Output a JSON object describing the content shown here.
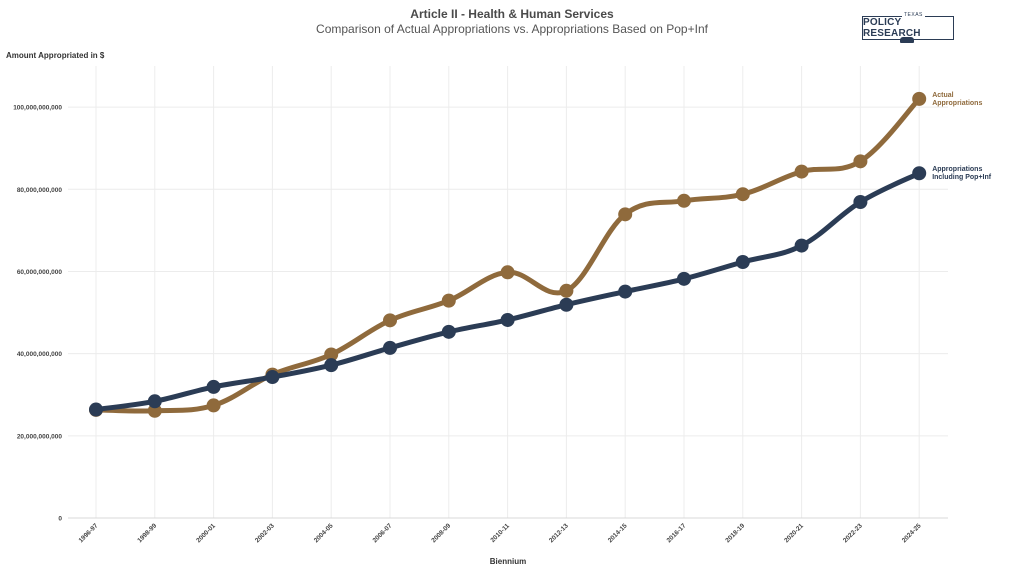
{
  "chart_data": {
    "type": "line",
    "title": "Article II - Health & Human Services",
    "subtitle": "Comparison of Actual Appropriations vs. Appropriations Based on Pop+Inf",
    "ylabel": "Amount Appropriated in $",
    "xlabel": "Biennium",
    "ylim": [
      0,
      110000000000
    ],
    "yticks": [
      0,
      20000000000,
      40000000000,
      60000000000,
      80000000000,
      100000000000
    ],
    "ytick_labels": [
      "0",
      "20,000,000,000",
      "40,000,000,000",
      "60,000,000,000",
      "80,000,000,000",
      "100,000,000,000"
    ],
    "grid": true,
    "categories": [
      "1996-97",
      "1998-99",
      "2000-01",
      "2002-03",
      "2004-05",
      "2006-07",
      "2008-09",
      "2010-11",
      "2012-13",
      "2014-15",
      "2016-17",
      "2018-19",
      "2020-21",
      "2022-23",
      "2024-25"
    ],
    "series": [
      {
        "name": "Actual Appropriations",
        "label_lines": [
          "Actual",
          "Appropriations"
        ],
        "color": "#8f6a3c",
        "values": [
          26300000000,
          26100000000,
          27400000000,
          34900000000,
          39800000000,
          48100000000,
          52900000000,
          59800000000,
          55300000000,
          73900000000,
          77200000000,
          78800000000,
          84300000000,
          86800000000,
          102000000000
        ]
      },
      {
        "name": "Appropriations Including Pop+Inf",
        "label_lines": [
          "Appropriations",
          "Including Pop+Inf"
        ],
        "color": "#2b3c55",
        "values": [
          26400000000,
          28400000000,
          31900000000,
          34300000000,
          37200000000,
          41400000000,
          45300000000,
          48200000000,
          51900000000,
          55100000000,
          58200000000,
          62300000000,
          66300000000,
          76900000000,
          83900000000
        ]
      }
    ]
  },
  "logo": {
    "small": "TEXAS",
    "main": "POLICY RESEARCH"
  }
}
